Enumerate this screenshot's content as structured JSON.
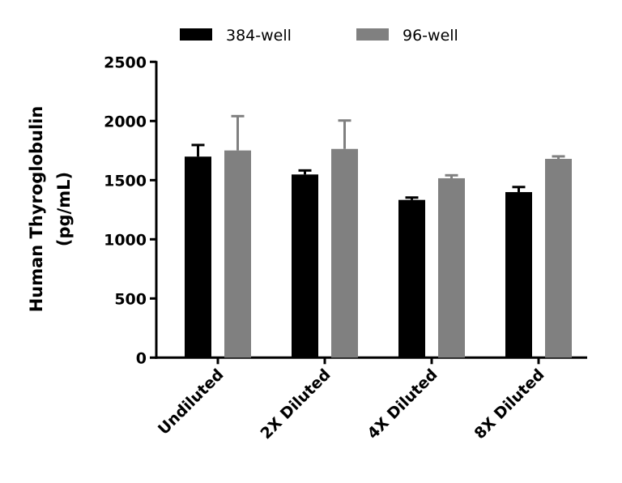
{
  "chart_data": {
    "type": "bar",
    "title": "",
    "xlabel": "",
    "ylabel": [
      "Human Thyroglobulin",
      "(pg/mL)"
    ],
    "ylim": [
      0,
      2500
    ],
    "yticks": [
      0,
      500,
      1000,
      1500,
      2000,
      2500
    ],
    "categories": [
      "Undiluted",
      "2X Diluted",
      "4X Diluted",
      "8X Diluted"
    ],
    "legend_position": "top",
    "grid": false,
    "series": [
      {
        "name": "384-well",
        "color": "#000000",
        "values": [
          1699,
          1548,
          1333,
          1399
        ],
        "error_upper": [
          1797,
          1582,
          1353,
          1442
        ]
      },
      {
        "name": "96-well",
        "color": "#808080",
        "values": [
          1751,
          1764,
          1516,
          1680
        ],
        "error_upper": [
          2041,
          2004,
          1541,
          1701
        ]
      }
    ]
  }
}
